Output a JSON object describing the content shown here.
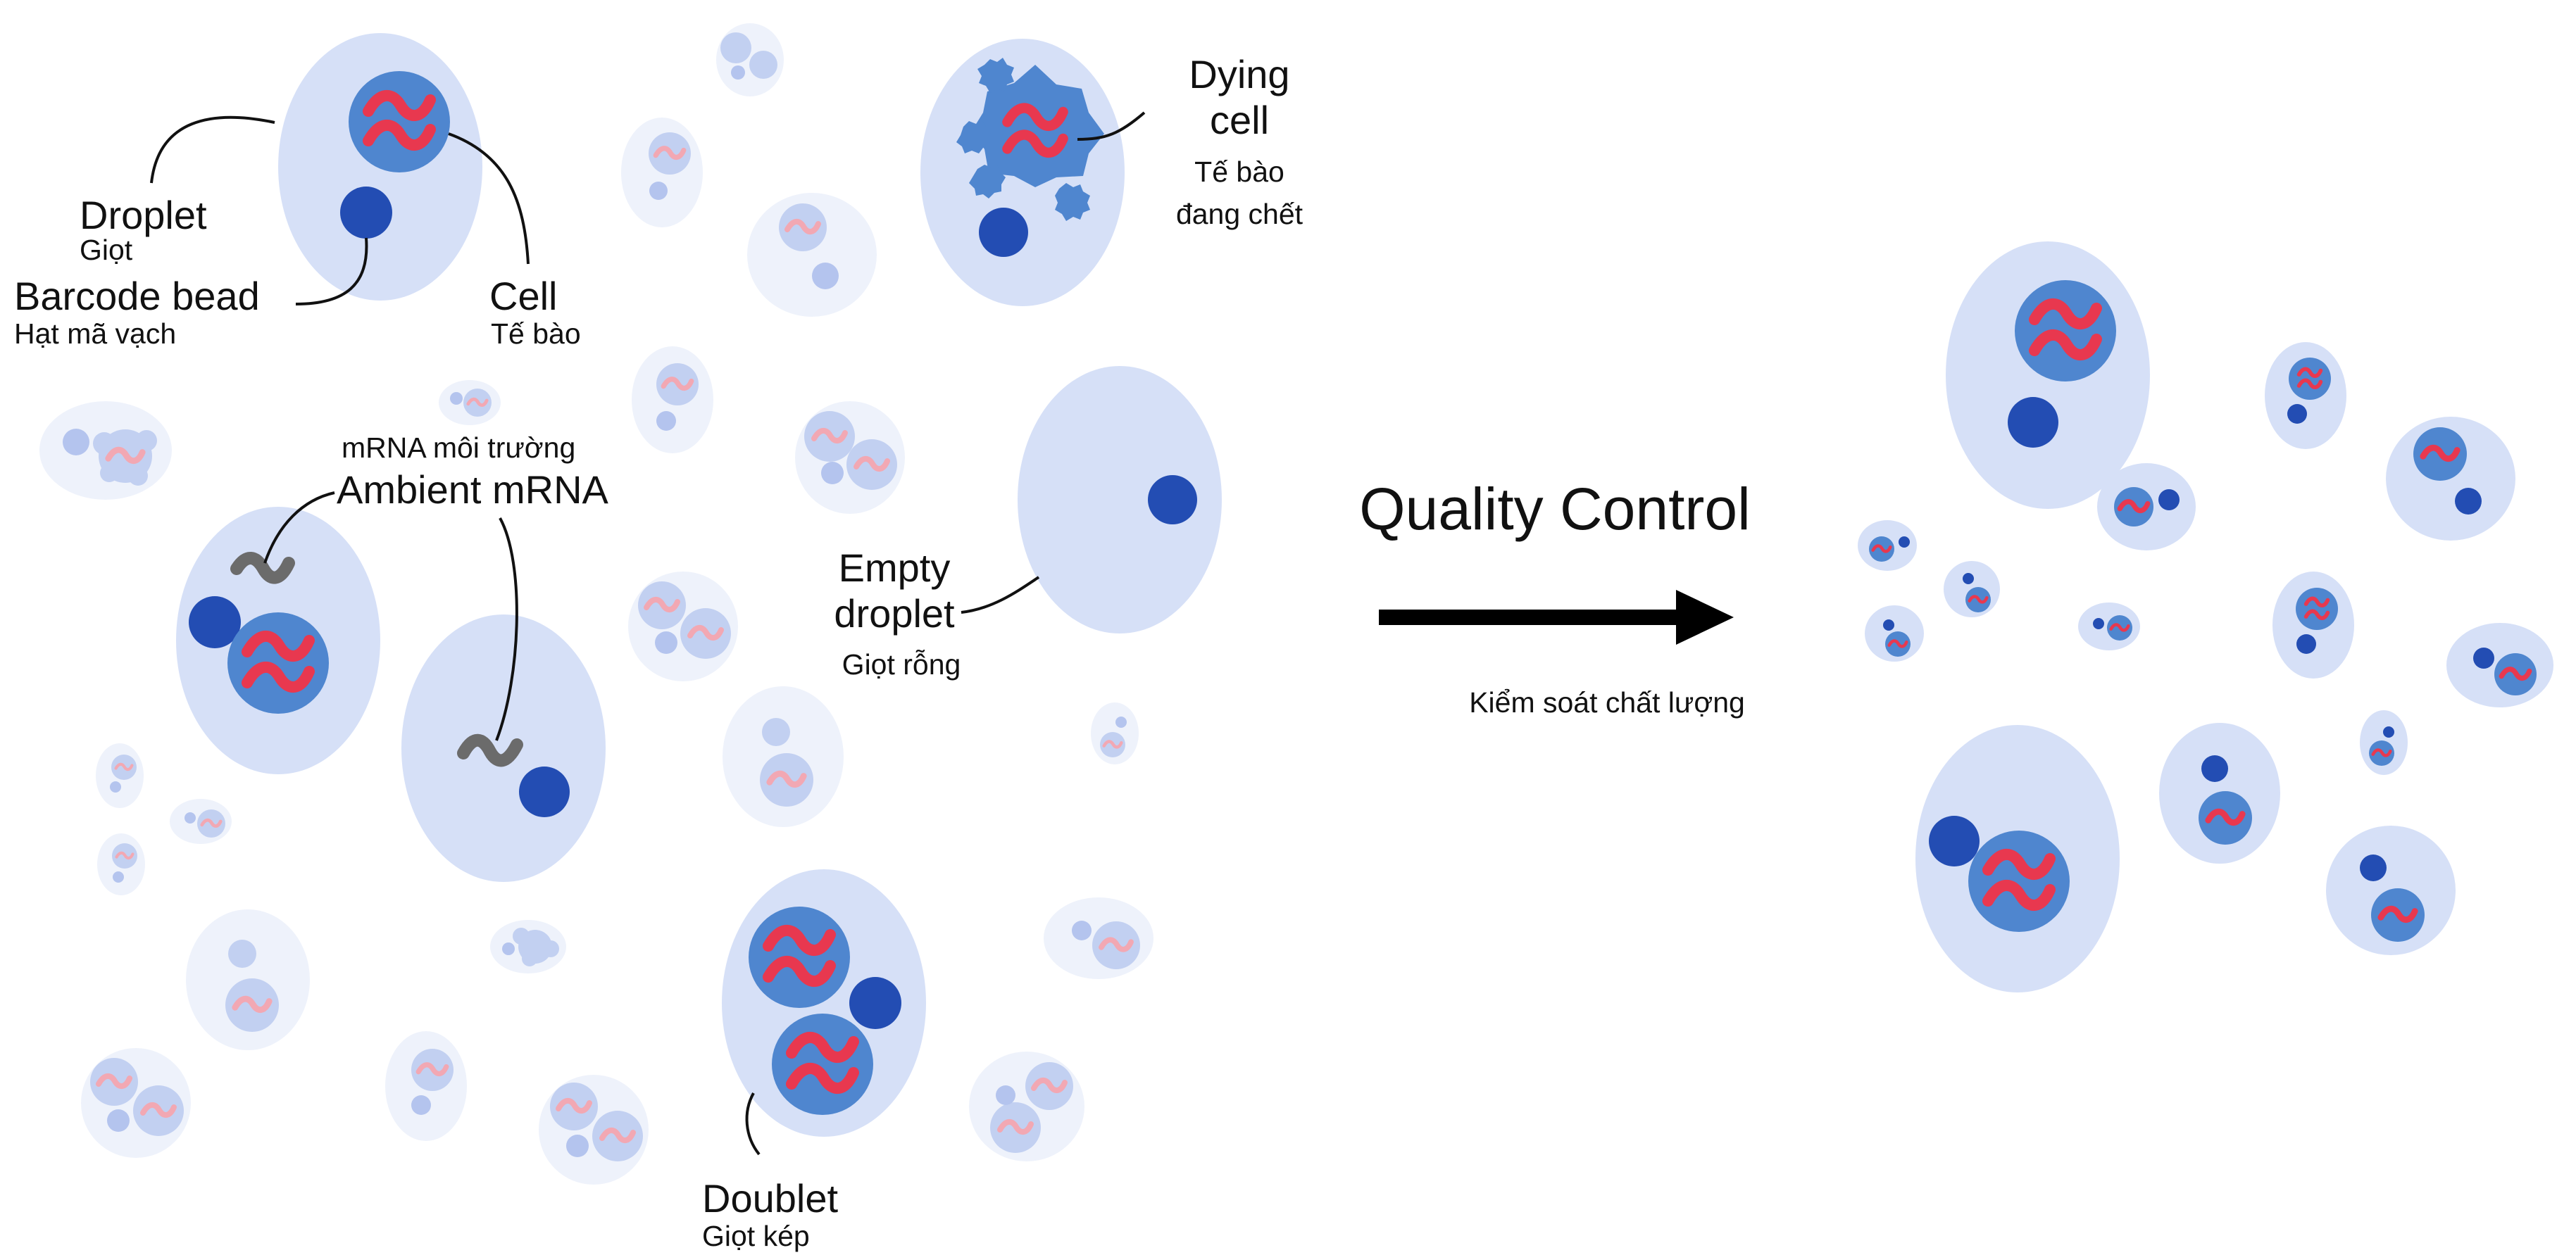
{
  "labels": {
    "droplet": {
      "en": "Droplet",
      "vi": "Giọt"
    },
    "barcode_bead": {
      "en": "Barcode bead",
      "vi": "Hạt mã vạch"
    },
    "cell": {
      "en": "Cell",
      "vi": "Tế bào"
    },
    "dying_cell": {
      "en_line1": "Dying",
      "en_line2": "cell",
      "vi_line1": "Tế bào",
      "vi_line2": "đang chết"
    },
    "ambient_mrna": {
      "vi": "mRNA môi trường",
      "en": "Ambient mRNA"
    },
    "empty_droplet": {
      "en_line1": "Empty",
      "en_line2": "droplet",
      "vi": "Giọt rỗng"
    },
    "doublet": {
      "en": "Doublet",
      "vi": "Giọt kép"
    }
  },
  "process": {
    "title": "Quality Control",
    "subtitle": "Kiểm soát chất lượng"
  },
  "colors": {
    "droplet": "#d6e0f7",
    "droplet_faded": "#eef2fb",
    "cell": "#4f86cf",
    "bead": "#234db3",
    "mrna": "#e8384f",
    "ambient_mrna": "#6b6b6b",
    "arrow": "#000000",
    "text": "#111111"
  }
}
